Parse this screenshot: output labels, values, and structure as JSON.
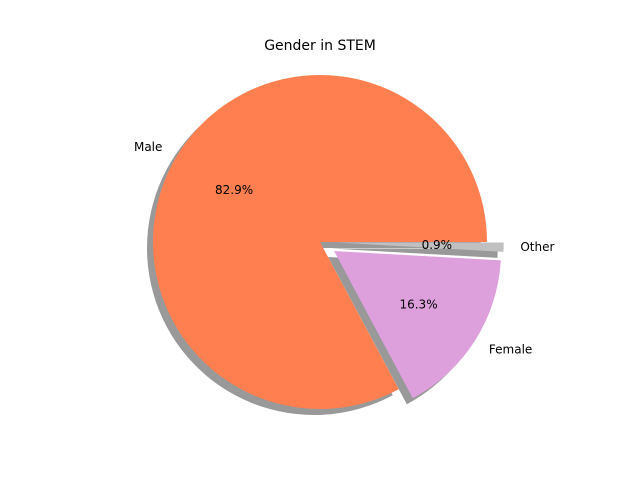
{
  "chart_data": {
    "type": "pie",
    "title": "Gender in STEM",
    "slices": [
      {
        "label": "Male",
        "value": 82.9,
        "percent_label": "82.9%",
        "color": "#ff7f50",
        "exploded": false
      },
      {
        "label": "Female",
        "value": 16.3,
        "percent_label": "16.3%",
        "color": "#dda0dd",
        "exploded": true
      },
      {
        "label": "Other",
        "value": 0.9,
        "percent_label": "0.9%",
        "color": "#c0c0c0",
        "exploded": true
      }
    ],
    "shadow": true,
    "start_angle": 0
  }
}
